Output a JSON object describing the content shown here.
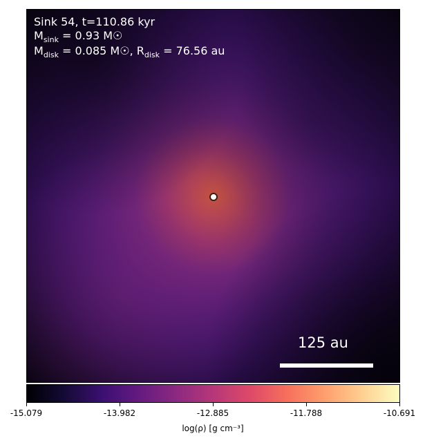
{
  "figure": {
    "info": {
      "title_line": "Sink 54, t=110.86 kyr",
      "sink_mass_prefix": "M",
      "sink_mass_sub": "sink",
      "sink_mass_value": " = 0.93 M☉",
      "disk_prefix": "M",
      "disk_sub": "disk",
      "disk_mass_value": " = 0.085 M☉, ",
      "disk_radius_prefix": "R",
      "disk_radius_sub": "disk",
      "disk_radius_value": " = 76.56 au"
    },
    "scalebar_label": "125 au",
    "colorbar": {
      "ticks": [
        "-15.079",
        "-13.982",
        "-12.885",
        "-11.788",
        "-10.691"
      ],
      "label": "log(ρ) [g cm⁻³]"
    }
  }
}
